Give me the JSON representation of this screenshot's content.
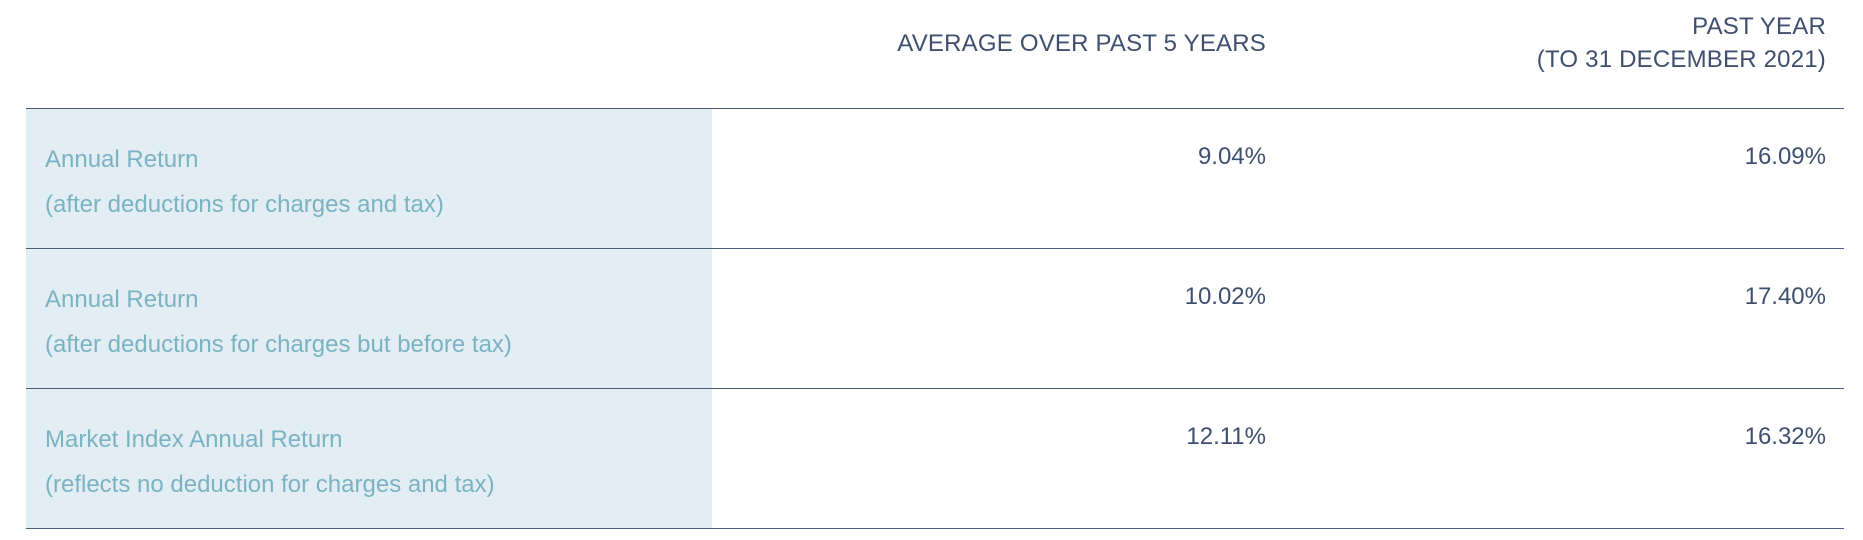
{
  "header": {
    "avg_label": "AVERAGE OVER PAST 5 YEARS",
    "past_line1": "PAST YEAR",
    "past_line2": "(TO 31 DECEMBER 2021)"
  },
  "rows": [
    {
      "label_line1": "Annual Return",
      "label_line2": "(after deductions for charges and tax)",
      "avg_5y": "9.04%",
      "past_year": "16.09%"
    },
    {
      "label_line1": "Annual Return",
      "label_line2": "(after deductions for charges but before tax)",
      "avg_5y": "10.02%",
      "past_year": "17.40%"
    },
    {
      "label_line1": "Market Index Annual Return",
      "label_line2": "(reflects no deduction for charges and tax)",
      "avg_5y": "12.11%",
      "past_year": "16.32%"
    }
  ],
  "colors": {
    "label_text": "#7bb3c2",
    "label_background": "#e2eef3",
    "value_text": "#3f4f6e",
    "rule": "#4a5d7d"
  }
}
